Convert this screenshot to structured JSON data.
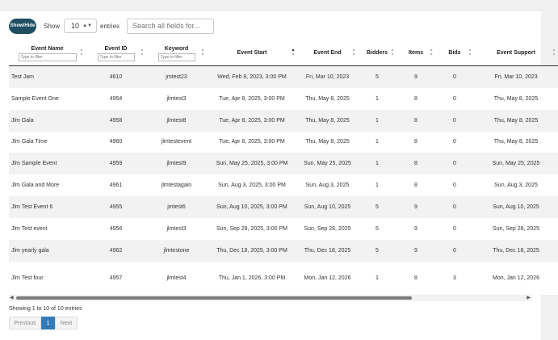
{
  "controls": {
    "show_hide_label": "Show/Hide",
    "show_label": "Show",
    "page_length": "10",
    "entries_label": "entries",
    "search_placeholder": "Search all fields for..."
  },
  "table": {
    "filter_placeholder": "Type to filter",
    "columns": [
      {
        "label": "Event Name",
        "filter": true
      },
      {
        "label": "Event ID",
        "filter": true
      },
      {
        "label": "Keyword",
        "filter": true
      },
      {
        "label": "Event Start",
        "filter": false,
        "sorted": "asc"
      },
      {
        "label": "Event End",
        "filter": false
      },
      {
        "label": "Bidders",
        "filter": false
      },
      {
        "label": "Items",
        "filter": false
      },
      {
        "label": "Bids",
        "filter": false
      },
      {
        "label": "Event Support",
        "filter": false
      }
    ],
    "rows": [
      [
        "Test Jam",
        "4610",
        "jmtest23",
        "Wed, Feb 8, 2023, 3:00 PM",
        "Fri, Mar 10, 2023",
        "5",
        "9",
        "0",
        "Fri, Mar 10, 2023"
      ],
      [
        "Sample Event One",
        "4954",
        "jlmtest3",
        "Tue, Apr 8, 2025, 3:00 PM",
        "Thu, May 8, 2025",
        "1",
        "8",
        "0",
        "Thu, May 8, 2025"
      ],
      [
        "Jlm Gala",
        "4958",
        "jlmtest8",
        "Tue, Apr 8, 2025, 3:00 PM",
        "Thu, May 8, 2025",
        "1",
        "8",
        "0",
        "Thu, May 8, 2025"
      ],
      [
        "Jlm Gala Time",
        "4960",
        "jlmtestevent",
        "Tue, Apr 8, 2025, 3:00 PM",
        "Thu, May 8, 2025",
        "1",
        "8",
        "0",
        "Thu, May 8, 2025"
      ],
      [
        "Jlm Sample Event",
        "4959",
        "jlmtest9",
        "Sun, May 25, 2025, 3:00 PM",
        "Sun, May 25, 2025",
        "1",
        "8",
        "0",
        "Sun, May 25, 2025"
      ],
      [
        "Jlm Gala and More",
        "4961",
        "jlmtestagain",
        "Sun, Aug 3, 2025, 3:00 PM",
        "Sun, Aug 3, 2025",
        "1",
        "8",
        "0",
        "Sun, Aug 3, 2025"
      ],
      [
        "Jlm Test Event 6",
        "4955",
        "jmtest6",
        "Sun, Aug 10, 2025, 3:00 PM",
        "Sun, Aug 10, 2025",
        "5",
        "9",
        "0",
        "Sun, Aug 10, 2025"
      ],
      [
        "Jlm Test event",
        "4956",
        "jlmtest3",
        "Sun, Sep 28, 2025, 3:00 PM",
        "Sun, Sep 28, 2025",
        "5",
        "9",
        "0",
        "Sun, Sep 28, 2025"
      ],
      [
        "Jlm yearly gala",
        "4962",
        "jlmtestone",
        "Thu, Dec 18, 2025, 3:00 PM",
        "Thu, Dec 18, 2025",
        "5",
        "9",
        "0",
        "Thu, Dec 18, 2025"
      ],
      [
        "Jlm Test four",
        "4957",
        "jlmtest4",
        "Thu, Jan 1, 2026, 3:00 PM",
        "Mon, Jan 12, 2026",
        "1",
        "8",
        "3",
        "Mon, Jan 12, 2026"
      ]
    ]
  },
  "footer": {
    "info": "Showing 1 to 10 of 10 entries",
    "prev_label": "Previous",
    "current_page": "1",
    "next_label": "Next"
  },
  "colors": {
    "show_hide_bg": "#1f4e63",
    "active_page": "#337ab7",
    "stripe": "#f2f2f2"
  }
}
